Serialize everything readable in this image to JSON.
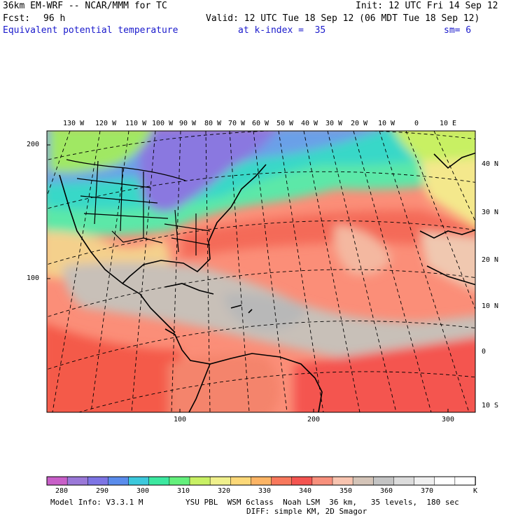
{
  "header": {
    "model_title": "36km EM-WRF -- NCAR/MMM for TC",
    "init": "Init: 12 UTC Fri 14 Sep 12",
    "fcst_label": "Fcst:",
    "fcst_value": "96 h",
    "valid": "Valid: 12 UTC Tue 18 Sep 12 (06 MDT Tue 18 Sep 12)",
    "field": "Equivalent potential temperature",
    "level": "at k-index =  35",
    "smoothing": "sm= 6"
  },
  "map": {
    "lon_labels": [
      "130 W",
      "120 W",
      "110 W",
      "100 W",
      "90 W",
      "80 W",
      "70 W",
      "60 W",
      "50 W",
      "40 W",
      "30 W",
      "20 W",
      "10 W",
      "0",
      "10 E"
    ],
    "lat_labels": [
      "40 N",
      "30 N",
      "20 N",
      "10 N",
      "0",
      "10 S"
    ],
    "y_ticks": [
      "200",
      "100"
    ],
    "x_ticks": [
      "100",
      "200",
      "300"
    ]
  },
  "colorbar": {
    "labels": [
      "280",
      "290",
      "300",
      "310",
      "320",
      "330",
      "340",
      "350",
      "360",
      "370"
    ],
    "unit": "K",
    "colors": [
      "#c85fc8",
      "#9a78d8",
      "#7d74e4",
      "#5a8cec",
      "#3cc8dc",
      "#3ce8a0",
      "#64f07c",
      "#c8f064",
      "#f0f08c",
      "#fcd878",
      "#fcb464",
      "#f8785c",
      "#f45450",
      "#f8907c",
      "#f8c4b0",
      "#d4c4b8",
      "#c4c4c4",
      "#dcdcdc",
      "#f0f0f0",
      "#ffffff",
      "#ffffff"
    ]
  },
  "footer": {
    "model_info": "Model Info: V3.3.1 M",
    "physics": "YSU PBL  WSM 6class  Noah LSM  36 km,   35 levels,  180 sec",
    "diffusion": "DIFF: simple KM, 2D Smagor"
  }
}
